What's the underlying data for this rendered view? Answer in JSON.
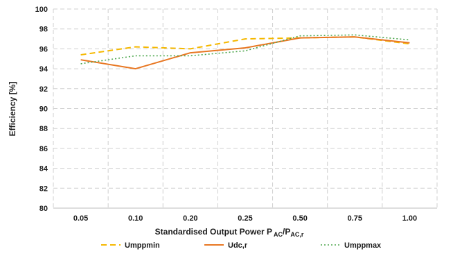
{
  "chart_data": {
    "type": "line",
    "xlabel_main": "Standardised Output Power P",
    "xlabel_sub1": "AC",
    "xlabel_mid": "/P",
    "xlabel_sub2": "AC,r",
    "ylabel": "Efficiency [%]",
    "categories": [
      "0.05",
      "0.10",
      "0.20",
      "0.25",
      "0.50",
      "0.75",
      "1.00"
    ],
    "ylim": [
      80,
      100
    ],
    "yticks": [
      "80",
      "82",
      "84",
      "86",
      "88",
      "90",
      "92",
      "94",
      "96",
      "98",
      "100"
    ],
    "grid": "dashed",
    "legend_position": "bottom",
    "series": [
      {
        "name": "Umppmin",
        "values": [
          95.4,
          96.2,
          96.0,
          97.0,
          97.1,
          97.2,
          96.5
        ],
        "color": "#F5B800",
        "style": "dashed"
      },
      {
        "name": "Udc,r",
        "values": [
          94.9,
          94.0,
          95.6,
          96.1,
          97.1,
          97.2,
          96.6
        ],
        "color": "#E87722",
        "style": "solid"
      },
      {
        "name": "Umppmax",
        "values": [
          94.5,
          95.3,
          95.3,
          95.8,
          97.3,
          97.4,
          96.9
        ],
        "color": "#4CA64C",
        "style": "dotted"
      }
    ]
  }
}
